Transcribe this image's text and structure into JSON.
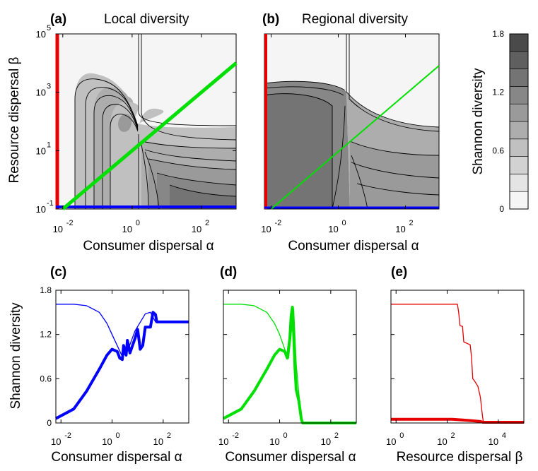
{
  "colors": {
    "red": "#e60000",
    "blue": "#0000ff",
    "green": "#00e000",
    "frame": "#000000"
  },
  "panels": {
    "a": {
      "label": "(a)",
      "title": "Local diversity"
    },
    "b": {
      "label": "(b)",
      "title": "Regional diversity"
    },
    "c": {
      "label": "(c)"
    },
    "d": {
      "label": "(d)"
    },
    "e": {
      "label": "(e)"
    }
  },
  "colorbar": {
    "label": "Shannon diversity",
    "ticks": [
      "0",
      "0.6",
      "1.2",
      "1.8"
    ],
    "levels": [
      0,
      0.2,
      0.4,
      0.6,
      0.8,
      1.0,
      1.2,
      1.4,
      1.6,
      1.8
    ],
    "shades": [
      "#f5f5f5",
      "#e4e4e4",
      "#d2d2d2",
      "#c0c0c0",
      "#adadad",
      "#9a9a9a",
      "#878787",
      "#747474",
      "#5f5f5f",
      "#4a4a4a"
    ]
  },
  "chart_data": [
    {
      "id": "a",
      "type": "heatmap",
      "title": "Local diversity",
      "xlabel": "Consumer dispersal α",
      "ylabel": "Resource dispersal β",
      "xscale": "log",
      "yscale": "log",
      "xticks": [
        "-2",
        "0",
        "2"
      ],
      "yticks": [
        "-1",
        "1",
        "3",
        "5"
      ],
      "xlim_exp": [
        -2.2,
        3
      ],
      "ylim_exp": [
        -1,
        5
      ],
      "lines": [
        {
          "color": "red",
          "description": "vertical line at left edge"
        },
        {
          "color": "blue",
          "description": "horizontal line at bottom edge"
        },
        {
          "color": "green",
          "description": "diagonal line α = β"
        }
      ]
    },
    {
      "id": "b",
      "type": "heatmap",
      "title": "Regional diversity",
      "xlabel": "Consumer dispersal α",
      "xscale": "log",
      "yscale": "log",
      "xticks": [
        "-2",
        "0",
        "2"
      ],
      "xlim_exp": [
        -2.2,
        3
      ],
      "ylim_exp": [
        -1,
        5
      ]
    },
    {
      "id": "c",
      "type": "line",
      "xlabel": "Consumer dispersal α",
      "ylabel": "Shannon diversity",
      "xscale": "log",
      "xticks": [
        "-2",
        "0",
        "2"
      ],
      "yticks": [
        "0",
        "0.6",
        "1.2",
        "1.8"
      ],
      "xlim_exp": [
        -2.2,
        3
      ],
      "ylim": [
        0,
        1.8
      ],
      "color": "blue",
      "series": [
        {
          "style": "thin",
          "x_exp": [
            -2.2,
            -1.5,
            -1.0,
            -0.5,
            -0.2,
            0.0,
            0.2,
            0.4,
            0.6,
            0.9,
            1.3,
            1.5,
            1.7,
            2.0,
            3.0
          ],
          "y": [
            1.61,
            1.61,
            1.59,
            1.5,
            1.35,
            1.2,
            1.05,
            0.9,
            0.97,
            1.25,
            1.48,
            1.5,
            1.37,
            1.37,
            1.37
          ]
        },
        {
          "style": "thick",
          "x_exp": [
            -2.2,
            -1.5,
            -1.0,
            -0.5,
            -0.2,
            0.0,
            0.2,
            0.3,
            0.4,
            0.45,
            0.55,
            0.6,
            0.7,
            0.9,
            1.0,
            1.1,
            1.2,
            1.3,
            1.5,
            1.6,
            1.7,
            1.75,
            2.0,
            3.0
          ],
          "y": [
            0.06,
            0.19,
            0.43,
            0.73,
            0.92,
            1.0,
            0.97,
            0.88,
            0.86,
            1.05,
            0.92,
            1.12,
            0.95,
            1.15,
            1.27,
            1.0,
            1.05,
            1.3,
            1.3,
            1.5,
            1.47,
            1.37,
            1.37,
            1.37
          ]
        }
      ]
    },
    {
      "id": "d",
      "type": "line",
      "xlabel": "Consumer dispersal α",
      "xscale": "log",
      "xticks": [
        "-2",
        "0",
        "2"
      ],
      "xlim_exp": [
        -2.2,
        3
      ],
      "ylim": [
        0,
        1.8
      ],
      "color": "green",
      "series": [
        {
          "style": "thin",
          "x_exp": [
            -2.2,
            -1.5,
            -1.0,
            -0.5,
            -0.2,
            0.0,
            0.2,
            0.35,
            0.45,
            0.55,
            0.65,
            0.75,
            0.85,
            0.9,
            3.0
          ],
          "y": [
            1.61,
            1.61,
            1.59,
            1.5,
            1.35,
            1.2,
            1.0,
            0.88,
            1.2,
            1.55,
            0.8,
            0.4,
            0.1,
            0.0,
            0.0
          ]
        },
        {
          "style": "thick",
          "x_exp": [
            -2.2,
            -1.5,
            -1.0,
            -0.5,
            -0.2,
            0.0,
            0.2,
            0.3,
            0.4,
            0.45,
            0.5,
            0.55,
            0.6,
            0.65,
            0.75,
            0.85,
            0.9,
            3.0
          ],
          "y": [
            0.06,
            0.19,
            0.43,
            0.73,
            0.92,
            1.0,
            0.97,
            0.88,
            1.15,
            1.45,
            1.57,
            1.2,
            0.75,
            0.45,
            0.3,
            0.05,
            0.0,
            0.0
          ]
        }
      ]
    },
    {
      "id": "e",
      "type": "line",
      "xlabel": "Resource dispersal β",
      "xscale": "log",
      "xticks": [
        "0",
        "2",
        "4"
      ],
      "xlim_exp": [
        -0.2,
        5
      ],
      "ylim": [
        0,
        1.8
      ],
      "color": "red",
      "series": [
        {
          "style": "thin",
          "x_exp": [
            -0.2,
            2.4,
            2.45,
            2.5,
            2.6,
            2.65,
            2.9,
            2.95,
            3.0,
            3.05,
            3.2,
            3.3,
            3.38,
            3.42,
            5.0
          ],
          "y": [
            1.61,
            1.61,
            1.5,
            1.32,
            1.31,
            1.1,
            1.06,
            0.9,
            0.6,
            0.58,
            0.5,
            0.35,
            0.1,
            0.0,
            0.0
          ]
        },
        {
          "style": "thick",
          "x_exp": [
            -0.2,
            1.0,
            2.2,
            2.6,
            3.0,
            3.3,
            3.4,
            5.0
          ],
          "y": [
            0.05,
            0.05,
            0.05,
            0.04,
            0.03,
            0.02,
            0.01,
            0.01
          ]
        }
      ]
    }
  ]
}
